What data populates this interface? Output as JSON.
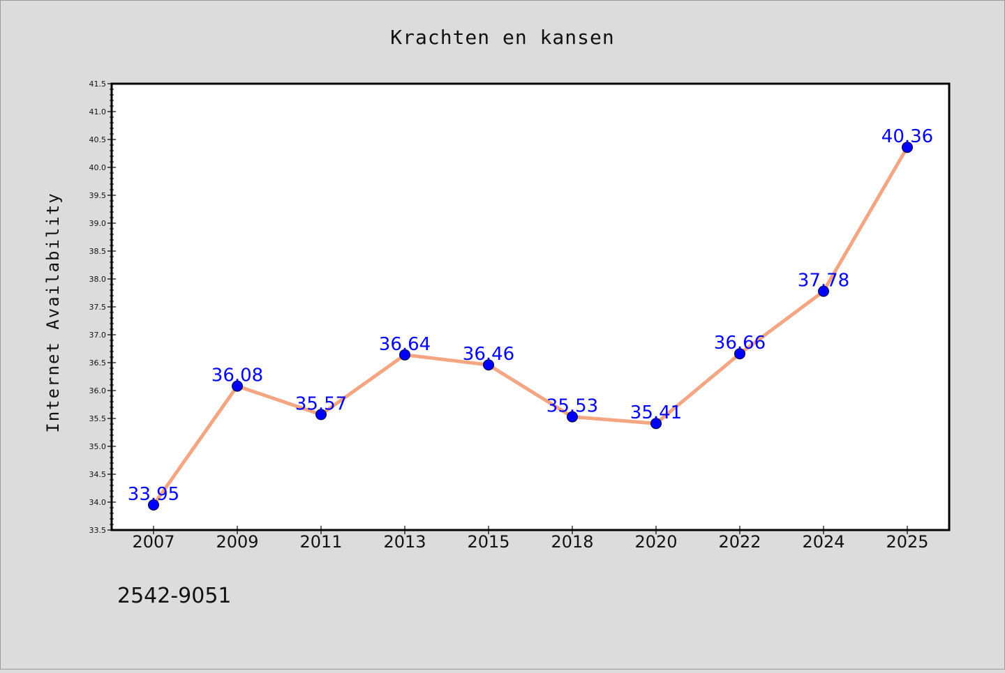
{
  "chart_data": {
    "type": "line",
    "title": "Krachten en kansen",
    "xlabel": "",
    "ylabel": "Internet Availability",
    "categories": [
      "2007",
      "2009",
      "2011",
      "2013",
      "2015",
      "2018",
      "2020",
      "2022",
      "2024",
      "2025"
    ],
    "series": [
      {
        "values": [
          33.95,
          36.08,
          35.57,
          36.64,
          36.46,
          35.53,
          35.41,
          36.66,
          37.78,
          40.36
        ]
      }
    ],
    "data_labels": [
      "33.95",
      "36.08",
      "35.57",
      "36.64",
      "36.46",
      "35.53",
      "35.41",
      "36.66",
      "37.78",
      "40.36"
    ],
    "ylim": [
      33.5,
      41.5
    ],
    "yticks": [
      "33.5",
      "34.0",
      "34.5",
      "35.0",
      "35.5",
      "36.0",
      "36.5",
      "37.0",
      "37.5",
      "38.0",
      "38.5",
      "39.0",
      "39.5",
      "40.0",
      "40.5",
      "41.0",
      "41.5"
    ],
    "grid": false,
    "legend": "none",
    "colors": {
      "line": "#f4a582",
      "marker": "#0000ff",
      "label": "#0000ff",
      "background": "#dcdcdc",
      "plot_area": "#ffffff"
    }
  },
  "footer": {
    "code": "2542-9051"
  }
}
